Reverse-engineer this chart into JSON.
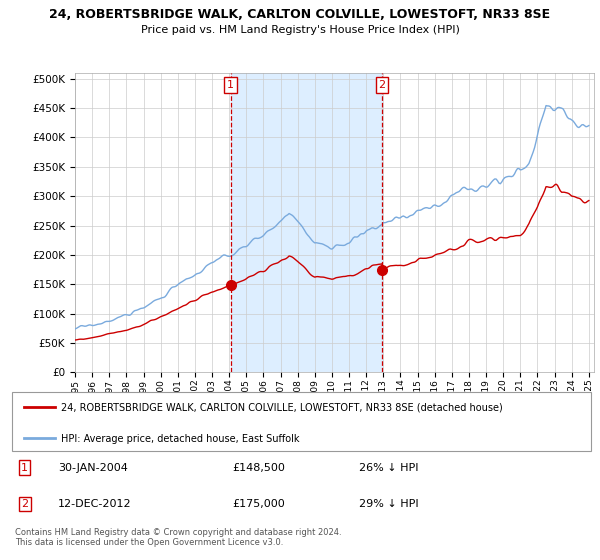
{
  "title": "24, ROBERTSBRIDGE WALK, CARLTON COLVILLE, LOWESTOFT, NR33 8SE",
  "subtitle": "Price paid vs. HM Land Registry's House Price Index (HPI)",
  "legend_label_red": "24, ROBERTSBRIDGE WALK, CARLTON COLVILLE, LOWESTOFT, NR33 8SE (detached house)",
  "legend_label_blue": "HPI: Average price, detached house, East Suffolk",
  "annotation1_date": "30-JAN-2004",
  "annotation1_price": "£148,500",
  "annotation1_hpi": "26% ↓ HPI",
  "annotation2_date": "12-DEC-2012",
  "annotation2_price": "£175,000",
  "annotation2_hpi": "29% ↓ HPI",
  "footnote": "Contains HM Land Registry data © Crown copyright and database right 2024.\nThis data is licensed under the Open Government Licence v3.0.",
  "red_color": "#cc0000",
  "blue_color": "#7aaadd",
  "shade_color": "#ddeeff",
  "background_color": "#ffffff",
  "grid_color": "#cccccc",
  "ylim": [
    0,
    510000
  ],
  "yticks": [
    0,
    50000,
    100000,
    150000,
    200000,
    250000,
    300000,
    350000,
    400000,
    450000,
    500000
  ],
  "sale1_year": 2004.08,
  "sale1_price": 148500,
  "sale2_year": 2012.93,
  "sale2_price": 175000
}
